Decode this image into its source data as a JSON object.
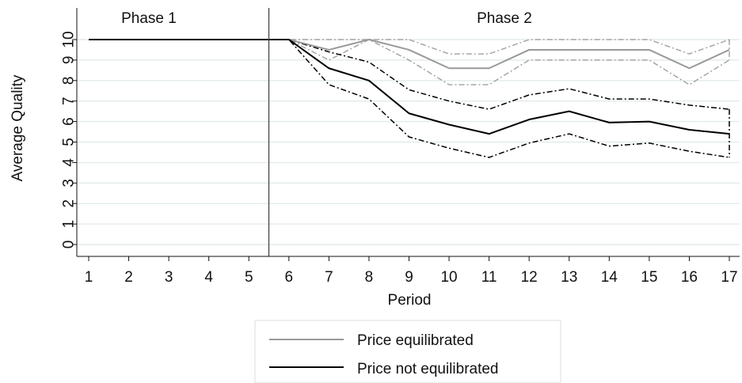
{
  "chart_data": {
    "type": "line",
    "xlabel": "Period",
    "ylabel": "Average Quality",
    "x": [
      1,
      2,
      3,
      4,
      5,
      6,
      7,
      8,
      9,
      10,
      11,
      12,
      13,
      14,
      15,
      16,
      17
    ],
    "xlim": [
      1,
      17
    ],
    "ylim": [
      0,
      10
    ],
    "x_ticks": [
      "1",
      "2",
      "3",
      "4",
      "5",
      "6",
      "7",
      "8",
      "9",
      "10",
      "11",
      "12",
      "13",
      "14",
      "15",
      "16",
      "17"
    ],
    "y_ticks": [
      "0",
      "1",
      "2",
      "3",
      "4",
      "5",
      "6",
      "7",
      "8",
      "9",
      "10"
    ],
    "grid": true,
    "phases": [
      {
        "label": "Phase 1"
      },
      {
        "label": "Phase 2"
      }
    ],
    "phase_divider_x": 5.5,
    "legend_position": "bottom-center",
    "series": [
      {
        "name": "Price equilibrated",
        "color": "#999999",
        "values": [
          10,
          10,
          10,
          10,
          10,
          10,
          9.5,
          10,
          9.5,
          8.6,
          8.6,
          9.5,
          9.5,
          9.5,
          9.5,
          8.6,
          9.5
        ],
        "lower": [
          10,
          10,
          10,
          10,
          10,
          10,
          9.0,
          10,
          9.0,
          7.8,
          7.8,
          9.0,
          9.0,
          9.0,
          9.0,
          7.8,
          9.0
        ],
        "upper": [
          10,
          10,
          10,
          10,
          10,
          10,
          10,
          10,
          10,
          9.3,
          9.3,
          10,
          10,
          10,
          10,
          9.3,
          10
        ]
      },
      {
        "name": "Price not equilibrated",
        "color": "#000000",
        "values": [
          10,
          10,
          10,
          10,
          10,
          10,
          8.6,
          8.0,
          6.4,
          5.85,
          5.4,
          6.1,
          6.5,
          5.95,
          6.0,
          5.6,
          5.4
        ],
        "lower": [
          10,
          10,
          10,
          10,
          10,
          10,
          7.8,
          7.1,
          5.25,
          4.7,
          4.25,
          4.95,
          5.4,
          4.8,
          4.95,
          4.55,
          4.25
        ],
        "upper": [
          10,
          10,
          10,
          10,
          10,
          10,
          9.4,
          8.9,
          7.55,
          7.0,
          6.6,
          7.3,
          7.6,
          7.1,
          7.1,
          6.8,
          6.6
        ]
      }
    ]
  }
}
